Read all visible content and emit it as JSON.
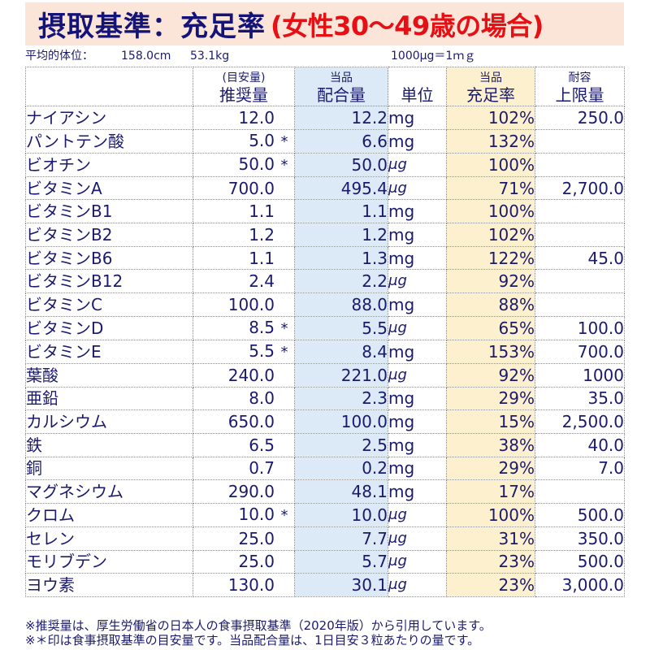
{
  "title": {
    "main": "摂取基準：充足率",
    "sub": "(女性30〜49歳の場合)",
    "main_color": "#141478",
    "sub_color": "#e50f14",
    "background": "#fbe4d8"
  },
  "info": {
    "label": "平均的体位：",
    "height": "158.0cm",
    "weight": "53.1kg",
    "conversion": "1000μg＝1ｍｇ"
  },
  "headers": {
    "name": "",
    "recommended_small": "(目安量)",
    "recommended": "推奨量",
    "product_small": "当品",
    "product": "配合量",
    "unit": "単位",
    "sufficiency_small": "当品",
    "sufficiency": "充足率",
    "upper_small": "耐容",
    "upper": "上限量"
  },
  "rows": [
    {
      "name": "ナイアシン",
      "recommended": "12.0",
      "asterisk": "",
      "amount": "12.2",
      "unit": "mg",
      "rate": "102%",
      "upper": "250.0"
    },
    {
      "name": "パントテン酸",
      "recommended": "5.0",
      "asterisk": "*",
      "amount": "6.6",
      "unit": "mg",
      "rate": "132%",
      "upper": ""
    },
    {
      "name": "ビオチン",
      "recommended": "50.0",
      "asterisk": "*",
      "amount": "50.0",
      "unit": "μg",
      "rate": "100%",
      "upper": ""
    },
    {
      "name": "ビタミンA",
      "recommended": "700.0",
      "asterisk": "",
      "amount": "495.4",
      "unit": "μg",
      "rate": "71%",
      "upper": "2,700.0"
    },
    {
      "name": "ビタミンB1",
      "recommended": "1.1",
      "asterisk": "",
      "amount": "1.1",
      "unit": "mg",
      "rate": "100%",
      "upper": ""
    },
    {
      "name": "ビタミンB2",
      "recommended": "1.2",
      "asterisk": "",
      "amount": "1.2",
      "unit": "mg",
      "rate": "102%",
      "upper": ""
    },
    {
      "name": "ビタミンB6",
      "recommended": "1.1",
      "asterisk": "",
      "amount": "1.3",
      "unit": "mg",
      "rate": "122%",
      "upper": "45.0"
    },
    {
      "name": "ビタミンB12",
      "recommended": "2.4",
      "asterisk": "",
      "amount": "2.2",
      "unit": "μg",
      "rate": "92%",
      "upper": ""
    },
    {
      "name": "ビタミンC",
      "recommended": "100.0",
      "asterisk": "",
      "amount": "88.0",
      "unit": "mg",
      "rate": "88%",
      "upper": ""
    },
    {
      "name": "ビタミンD",
      "recommended": "8.5",
      "asterisk": "*",
      "amount": "5.5",
      "unit": "μg",
      "rate": "65%",
      "upper": "100.0"
    },
    {
      "name": "ビタミンE",
      "recommended": "5.5",
      "asterisk": "*",
      "amount": "8.4",
      "unit": "mg",
      "rate": "153%",
      "upper": "700.0"
    },
    {
      "name": "葉酸",
      "recommended": "240.0",
      "asterisk": "",
      "amount": "221.0",
      "unit": "μg",
      "rate": "92%",
      "upper": "1000"
    },
    {
      "name": "亜鉛",
      "recommended": "8.0",
      "asterisk": "",
      "amount": "2.3",
      "unit": "mg",
      "rate": "29%",
      "upper": "35.0"
    },
    {
      "name": "カルシウム",
      "recommended": "650.0",
      "asterisk": "",
      "amount": "100.0",
      "unit": "mg",
      "rate": "15%",
      "upper": "2,500.0"
    },
    {
      "name": "鉄",
      "recommended": "6.5",
      "asterisk": "",
      "amount": "2.5",
      "unit": "mg",
      "rate": "38%",
      "upper": "40.0"
    },
    {
      "name": "銅",
      "recommended": "0.7",
      "asterisk": "",
      "amount": "0.2",
      "unit": "mg",
      "rate": "29%",
      "upper": "7.0"
    },
    {
      "name": "マグネシウム",
      "recommended": "290.0",
      "asterisk": "",
      "amount": "48.1",
      "unit": "mg",
      "rate": "17%",
      "upper": ""
    },
    {
      "name": "クロム",
      "recommended": "10.0",
      "asterisk": "*",
      "amount": "10.0",
      "unit": "μg",
      "rate": "100%",
      "upper": "500.0"
    },
    {
      "name": "セレン",
      "recommended": "25.0",
      "asterisk": "",
      "amount": "7.7",
      "unit": "μg",
      "rate": "31%",
      "upper": "350.0"
    },
    {
      "name": "モリブデン",
      "recommended": "25.0",
      "asterisk": "",
      "amount": "5.7",
      "unit": "μg",
      "rate": "23%",
      "upper": "500.0"
    },
    {
      "name": "ヨウ素",
      "recommended": "130.0",
      "asterisk": "",
      "amount": "30.1",
      "unit": "μg",
      "rate": "23%",
      "upper": "3,000.0"
    }
  ],
  "footer": {
    "line1": "※推奨量は、厚生労働省の日本人の食事摂取基準（2020年版）から引用しています。",
    "line2": "※＊印は食事摂取基準の目安量です。当品配合量は、1日目安３粒あたりの量です。"
  },
  "colors": {
    "text": "#1a1a6e",
    "product_column": "#dce9f6",
    "rate_column": "#fcf0cf"
  }
}
